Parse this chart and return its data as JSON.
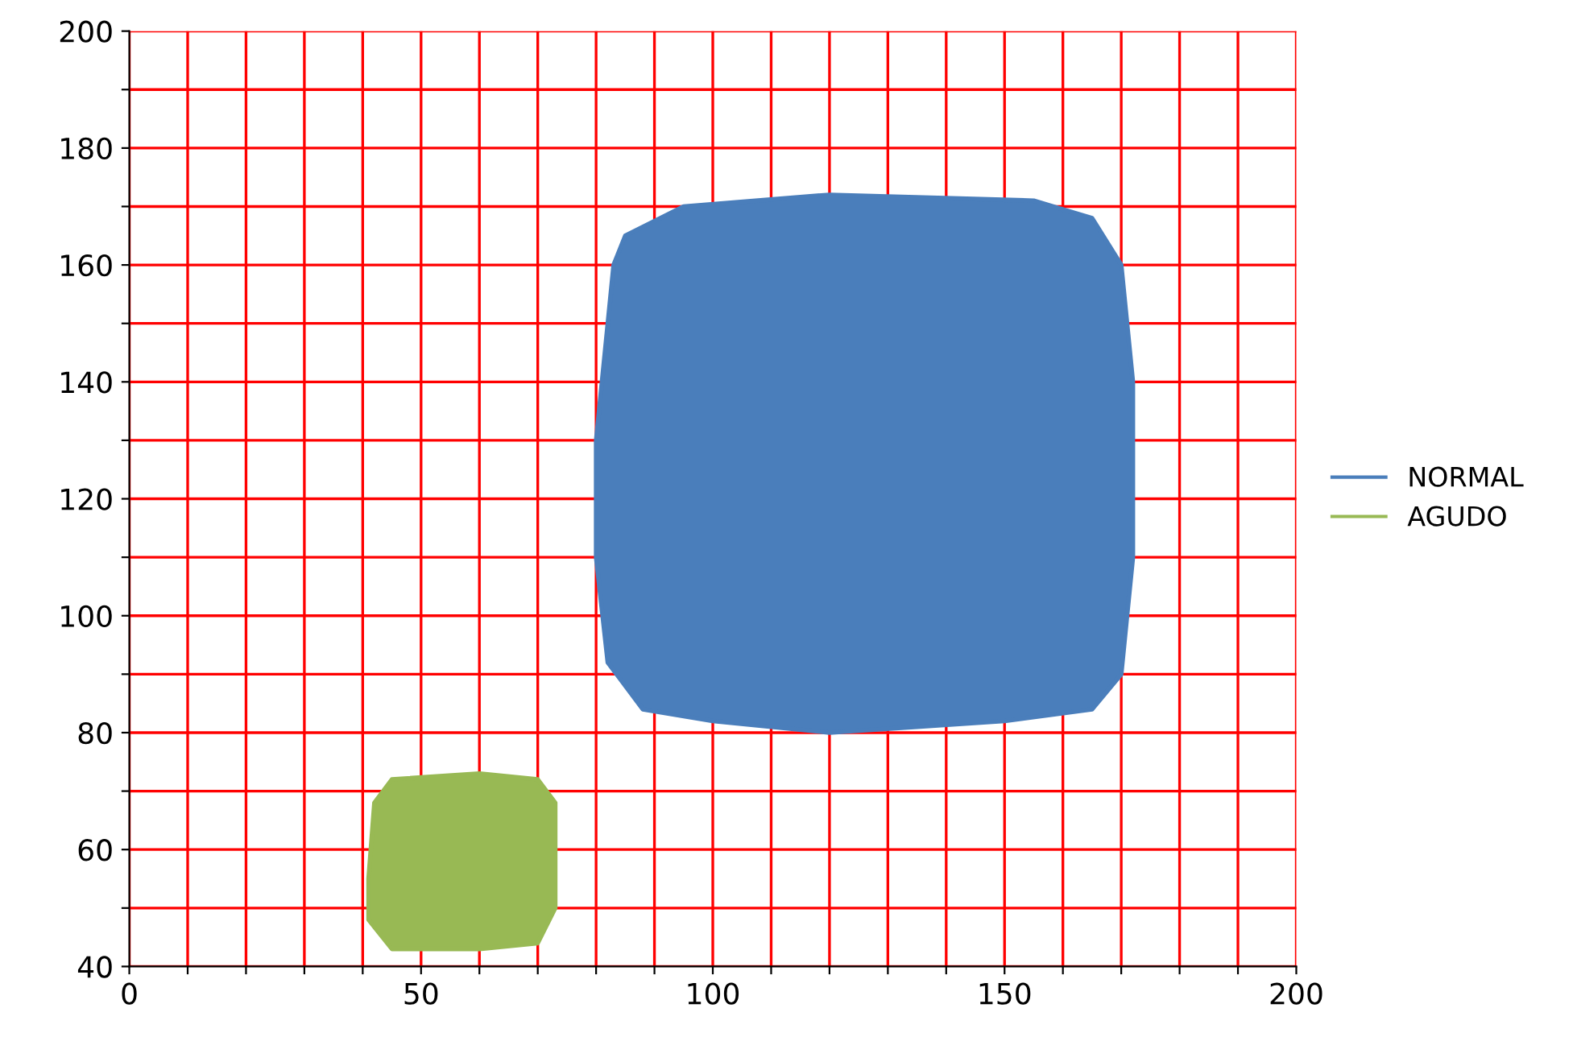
{
  "chart_data": {
    "type": "area",
    "series": [
      {
        "name": "NORMAL",
        "color": "#4a7ebb",
        "x": [
          85,
          95,
          120,
          155,
          165,
          170,
          172,
          172,
          170,
          165,
          150,
          120,
          100,
          88,
          82,
          80,
          80,
          82,
          83,
          85
        ],
        "values": [
          165,
          170,
          172,
          171,
          168,
          160,
          140,
          110,
          90,
          84,
          82,
          80,
          82,
          84,
          92,
          110,
          130,
          150,
          160,
          165
        ]
      },
      {
        "name": "AGUDO",
        "color": "#98b954",
        "x": [
          45,
          60,
          70,
          73,
          73,
          70,
          60,
          45,
          41,
          41,
          42,
          45
        ],
        "values": [
          72,
          73,
          72,
          68,
          50,
          44,
          43,
          43,
          48,
          55,
          68,
          72
        ]
      }
    ],
    "xlim": [
      0,
      200
    ],
    "ylim": [
      40,
      200
    ],
    "xticks": [
      0,
      {
        "value": 10,
        "label": null
      },
      {
        "value": 20,
        "label": null
      },
      {
        "value": 30,
        "label": null
      },
      {
        "value": 40,
        "label": null
      },
      50,
      {
        "value": 60,
        "label": null
      },
      {
        "value": 70,
        "label": null
      },
      {
        "value": 80,
        "label": null
      },
      {
        "value": 90,
        "label": null
      },
      100,
      {
        "value": 110,
        "label": null
      },
      {
        "value": 120,
        "label": null
      },
      {
        "value": 130,
        "label": null
      },
      {
        "value": 140,
        "label": null
      },
      150,
      {
        "value": 160,
        "label": null
      },
      {
        "value": 170,
        "label": null
      },
      {
        "value": 180,
        "label": null
      },
      {
        "value": 190,
        "label": null
      },
      200
    ],
    "yticks": [
      40,
      {
        "value": 50,
        "label": null
      },
      60,
      {
        "value": 70,
        "label": null
      },
      80,
      {
        "value": 90,
        "label": null
      },
      100,
      {
        "value": 110,
        "label": null
      },
      120,
      {
        "value": 130,
        "label": null
      },
      140,
      {
        "value": 150,
        "label": null
      },
      160,
      {
        "value": 170,
        "label": null
      },
      180,
      {
        "value": 190,
        "label": null
      },
      200
    ],
    "grid": true,
    "legend": "right"
  }
}
